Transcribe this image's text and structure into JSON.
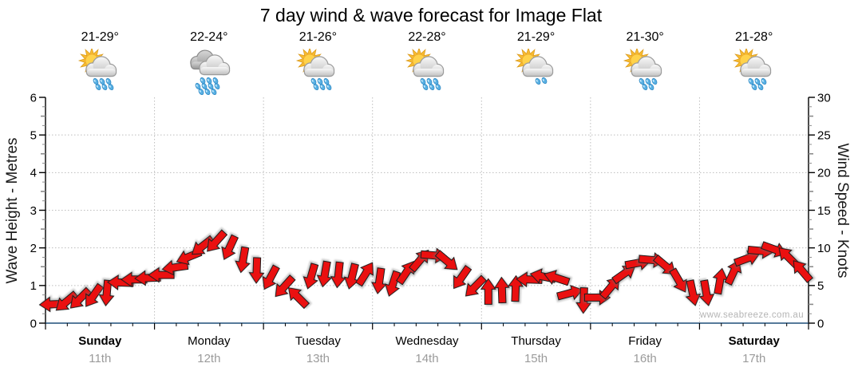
{
  "title": "7 day wind & wave forecast for Image Flat",
  "watermark": "www.seabreeze.com.au",
  "days": [
    {
      "name": "Sunday",
      "date": "11th",
      "temp": "21-29°",
      "icon": "sun-cloud-showers",
      "drops": 6,
      "bold": true
    },
    {
      "name": "Monday",
      "date": "12th",
      "temp": "22-24°",
      "icon": "clouds-rain",
      "drops": 10,
      "bold": false
    },
    {
      "name": "Tuesday",
      "date": "13th",
      "temp": "21-26°",
      "icon": "sun-cloud-showers",
      "drops": 6,
      "bold": false
    },
    {
      "name": "Wednesday",
      "date": "14th",
      "temp": "22-28°",
      "icon": "sun-cloud-showers",
      "drops": 6,
      "bold": false
    },
    {
      "name": "Thursday",
      "date": "15th",
      "temp": "21-29°",
      "icon": "sun-cloud-light-showers",
      "drops": 2,
      "bold": false
    },
    {
      "name": "Friday",
      "date": "16th",
      "temp": "21-30°",
      "icon": "sun-cloud-showers",
      "drops": 5,
      "bold": false
    },
    {
      "name": "Saturday",
      "date": "17th",
      "temp": "21-28°",
      "icon": "sun-cloud-showers",
      "drops": 5,
      "bold": true
    }
  ],
  "chart_data": {
    "type": "wind-arrow-series",
    "title": "7 day wind & wave forecast for Image Flat",
    "left_axis": {
      "label": "Wave Height - Metres",
      "min": 0,
      "max": 6,
      "major_step": 1
    },
    "right_axis": {
      "label": "Wind Speed - Knots",
      "min": 0,
      "max": 30,
      "major_step": 5
    },
    "x_categories": [
      "Sunday 11th",
      "Monday 12th",
      "Tuesday 13th",
      "Wednesday 14th",
      "Thursday 15th",
      "Friday 16th",
      "Saturday 17th"
    ],
    "samples_per_day": 8,
    "grid": {
      "horizontal_dotted_at_metres": [
        1,
        2,
        3,
        4,
        5
      ],
      "vertical_dotted_at_day_boundaries": true,
      "bottom_minor_divisions_per_day": 5
    },
    "wind": {
      "units": "knots",
      "speeds_knots": [
        2.5,
        2.8,
        3.2,
        3.6,
        4.0,
        5.4,
        5.8,
        6.0,
        6.4,
        7.4,
        8.8,
        10.2,
        10.8,
        10.0,
        8.4,
        7.0,
        6.0,
        4.8,
        3.5,
        6.2,
        6.5,
        6.4,
        6.2,
        6.6,
        5.6,
        5.2,
        6.8,
        8.4,
        9.0,
        8.2,
        6.0,
        4.8,
        4.2,
        4.4,
        4.6,
        5.8,
        6.2,
        6.0,
        4.0,
        3.0,
        3.4,
        4.8,
        6.6,
        8.0,
        8.4,
        7.6,
        5.6,
        4.0,
        4.0,
        5.6,
        6.8,
        8.6,
        9.6,
        9.8,
        8.8,
        7.0
      ],
      "directions_deg_pointing_to": [
        268,
        230,
        225,
        215,
        185,
        272,
        270,
        268,
        270,
        262,
        248,
        232,
        222,
        205,
        190,
        182,
        208,
        222,
        315,
        196,
        190,
        186,
        194,
        32,
        188,
        198,
        34,
        40,
        95,
        130,
        215,
        225,
        0,
        358,
        2,
        272,
        282,
        288,
        75,
        182,
        90,
        40,
        55,
        80,
        95,
        130,
        150,
        168,
        170,
        10,
        25,
        70,
        95,
        110,
        315,
        320
      ]
    },
    "colors": {
      "arrow": "#ea1010",
      "arrow_outline": "#1c1c1c",
      "grid": "#bdbdbd",
      "axis": "#000000",
      "baseline": "#1f4e79",
      "date_text": "#9b9b9b",
      "watermark": "#b5b5b5"
    }
  }
}
